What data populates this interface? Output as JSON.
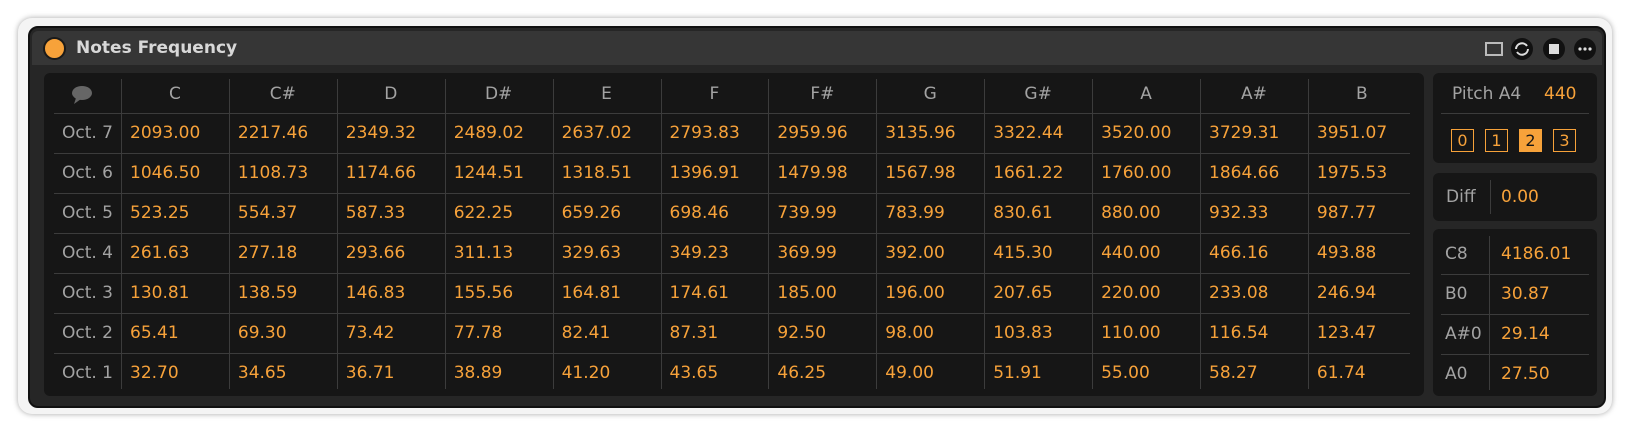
{
  "header": {
    "title": "Notes Frequency"
  },
  "table": {
    "columns": [
      "C",
      "C#",
      "D",
      "D#",
      "E",
      "F",
      "F#",
      "G",
      "G#",
      "A",
      "A#",
      "B"
    ],
    "rows": [
      {
        "label": "Oct. 7",
        "values": [
          "2093.00",
          "2217.46",
          "2349.32",
          "2489.02",
          "2637.02",
          "2793.83",
          "2959.96",
          "3135.96",
          "3322.44",
          "3520.00",
          "3729.31",
          "3951.07"
        ]
      },
      {
        "label": "Oct. 6",
        "values": [
          "1046.50",
          "1108.73",
          "1174.66",
          "1244.51",
          "1318.51",
          "1396.91",
          "1479.98",
          "1567.98",
          "1661.22",
          "1760.00",
          "1864.66",
          "1975.53"
        ]
      },
      {
        "label": "Oct. 5",
        "values": [
          "523.25",
          "554.37",
          "587.33",
          "622.25",
          "659.26",
          "698.46",
          "739.99",
          "783.99",
          "830.61",
          "880.00",
          "932.33",
          "987.77"
        ]
      },
      {
        "label": "Oct. 4",
        "values": [
          "261.63",
          "277.18",
          "293.66",
          "311.13",
          "329.63",
          "349.23",
          "369.99",
          "392.00",
          "415.30",
          "440.00",
          "466.16",
          "493.88"
        ]
      },
      {
        "label": "Oct. 3",
        "values": [
          "130.81",
          "138.59",
          "146.83",
          "155.56",
          "164.81",
          "174.61",
          "185.00",
          "196.00",
          "207.65",
          "220.00",
          "233.08",
          "246.94"
        ]
      },
      {
        "label": "Oct. 2",
        "values": [
          "65.41",
          "69.30",
          "73.42",
          "77.78",
          "82.41",
          "87.31",
          "92.50",
          "98.00",
          "103.83",
          "110.00",
          "116.54",
          "123.47"
        ]
      },
      {
        "label": "Oct. 1",
        "values": [
          "32.70",
          "34.65",
          "36.71",
          "38.89",
          "41.20",
          "43.65",
          "46.25",
          "49.00",
          "51.91",
          "55.00",
          "58.27",
          "61.74"
        ]
      }
    ]
  },
  "pitch": {
    "label": "Pitch A4",
    "value": "440",
    "buttons": [
      "0",
      "1",
      "2",
      "3"
    ],
    "selected": 2
  },
  "diff": {
    "label": "Diff",
    "value": "0.00"
  },
  "limits": [
    {
      "label": "C8",
      "value": "4186.01"
    },
    {
      "label": "B0",
      "value": "30.87"
    },
    {
      "label": "A#0",
      "value": "29.14"
    },
    {
      "label": "A0",
      "value": "27.50"
    }
  ]
}
